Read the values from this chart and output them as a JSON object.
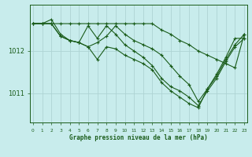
{
  "background_color": "#c8ecec",
  "grid_color": "#aed4d4",
  "line_color": "#1a5c1a",
  "title": "Graphe pression niveau de la mer (hPa)",
  "xlabel_hours": [
    0,
    1,
    2,
    3,
    4,
    5,
    6,
    7,
    8,
    9,
    10,
    11,
    12,
    13,
    14,
    15,
    16,
    17,
    18,
    19,
    20,
    21,
    22,
    23
  ],
  "yticks": [
    1011,
    1012
  ],
  "ylim": [
    1010.3,
    1013.1
  ],
  "xlim": [
    -0.3,
    23.3
  ],
  "lines": [
    [
      1012.65,
      1012.65,
      1012.75,
      1012.4,
      1012.25,
      1012.2,
      1012.1,
      1012.2,
      1012.35,
      1012.6,
      1012.4,
      1012.25,
      1012.15,
      1012.05,
      1011.9,
      1011.65,
      1011.4,
      1011.2,
      1010.8,
      1011.1,
      1011.45,
      1011.85,
      1012.3,
      1012.3
    ],
    [
      1012.65,
      1012.65,
      1012.65,
      1012.35,
      1012.25,
      1012.2,
      1012.1,
      1011.8,
      1012.1,
      1012.05,
      1011.9,
      1011.8,
      1011.7,
      1011.55,
      1011.25,
      1011.05,
      1010.9,
      1010.75,
      1010.65,
      1011.1,
      1011.4,
      1011.8,
      1012.15,
      1012.4
    ],
    [
      1012.65,
      1012.65,
      1012.65,
      1012.35,
      1012.25,
      1012.2,
      1012.6,
      1012.3,
      1012.6,
      1012.4,
      1012.15,
      1012.0,
      1011.85,
      1011.65,
      1011.35,
      1011.15,
      1011.05,
      1010.9,
      1010.7,
      1011.05,
      1011.35,
      1011.75,
      1012.1,
      1012.3
    ],
    [
      1012.65,
      1012.65,
      1012.65,
      1012.65,
      1012.65,
      1012.65,
      1012.65,
      1012.65,
      1012.65,
      1012.65,
      1012.65,
      1012.65,
      1012.65,
      1012.65,
      1012.5,
      1012.4,
      1012.25,
      1012.15,
      1012.0,
      1011.9,
      1011.8,
      1011.7,
      1011.6,
      1012.4
    ]
  ]
}
